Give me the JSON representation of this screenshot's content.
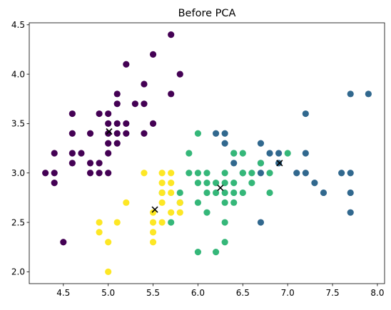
{
  "chart_data": {
    "type": "scatter",
    "title": "Before PCA",
    "xlabel": "",
    "ylabel": "",
    "xlim": [
      4.12,
      8.08
    ],
    "ylim": [
      1.88,
      4.52
    ],
    "xticks": [
      "4.5",
      "5.0",
      "5.5",
      "6.0",
      "6.5",
      "7.0",
      "7.5",
      "8.0"
    ],
    "xtick_values": [
      4.5,
      5.0,
      5.5,
      6.0,
      6.5,
      7.0,
      7.5,
      8.0
    ],
    "yticks": [
      "2.0",
      "2.5",
      "3.0",
      "3.5",
      "4.0",
      "4.5"
    ],
    "ytick_values": [
      2.0,
      2.5,
      3.0,
      3.5,
      4.0,
      4.5
    ],
    "grid": false,
    "legend": "none",
    "series": [
      {
        "color": "#440154",
        "marker": "circle",
        "points": [
          [
            4.3,
            3.0
          ],
          [
            4.4,
            2.9
          ],
          [
            4.4,
            3.0
          ],
          [
            4.4,
            3.2
          ],
          [
            4.5,
            2.3
          ],
          [
            4.6,
            3.1
          ],
          [
            4.6,
            3.2
          ],
          [
            4.6,
            3.4
          ],
          [
            4.6,
            3.6
          ],
          [
            4.7,
            3.2
          ],
          [
            4.8,
            3.0
          ],
          [
            4.8,
            3.1
          ],
          [
            4.8,
            3.4
          ],
          [
            4.9,
            3.0
          ],
          [
            4.9,
            3.1
          ],
          [
            4.9,
            3.6
          ],
          [
            5.0,
            3.0
          ],
          [
            5.0,
            3.2
          ],
          [
            5.0,
            3.3
          ],
          [
            5.0,
            3.4
          ],
          [
            5.0,
            3.5
          ],
          [
            5.0,
            3.6
          ],
          [
            5.1,
            3.3
          ],
          [
            5.1,
            3.4
          ],
          [
            5.1,
            3.5
          ],
          [
            5.1,
            3.7
          ],
          [
            5.1,
            3.8
          ],
          [
            5.2,
            3.4
          ],
          [
            5.2,
            3.5
          ],
          [
            5.2,
            4.1
          ],
          [
            5.3,
            3.7
          ],
          [
            5.4,
            3.4
          ],
          [
            5.4,
            3.7
          ],
          [
            5.4,
            3.9
          ],
          [
            5.5,
            3.5
          ],
          [
            5.5,
            4.2
          ],
          [
            5.7,
            3.8
          ],
          [
            5.7,
            4.4
          ],
          [
            5.8,
            4.0
          ]
        ]
      },
      {
        "color": "#31688e",
        "marker": "circle",
        "points": [
          [
            6.2,
            3.4
          ],
          [
            6.3,
            3.3
          ],
          [
            6.3,
            3.4
          ],
          [
            6.4,
            3.1
          ],
          [
            6.4,
            3.2
          ],
          [
            6.5,
            3.0
          ],
          [
            6.7,
            2.5
          ],
          [
            6.7,
            3.0
          ],
          [
            6.7,
            3.1
          ],
          [
            6.7,
            3.3
          ],
          [
            6.8,
            3.2
          ],
          [
            6.9,
            3.1
          ],
          [
            6.9,
            3.2
          ],
          [
            7.1,
            3.0
          ],
          [
            7.2,
            3.0
          ],
          [
            7.2,
            3.2
          ],
          [
            7.2,
            3.6
          ],
          [
            7.3,
            2.9
          ],
          [
            7.4,
            2.8
          ],
          [
            7.6,
            3.0
          ],
          [
            7.7,
            2.6
          ],
          [
            7.7,
            2.8
          ],
          [
            7.7,
            3.0
          ],
          [
            7.7,
            3.8
          ],
          [
            7.9,
            3.8
          ]
        ]
      },
      {
        "color": "#35b779",
        "marker": "circle",
        "points": [
          [
            5.6,
            2.8
          ],
          [
            5.7,
            2.5
          ],
          [
            5.8,
            2.7
          ],
          [
            5.8,
            2.8
          ],
          [
            5.9,
            3.0
          ],
          [
            5.9,
            3.2
          ],
          [
            6.0,
            2.2
          ],
          [
            6.0,
            2.7
          ],
          [
            6.0,
            2.9
          ],
          [
            6.0,
            3.0
          ],
          [
            6.0,
            3.4
          ],
          [
            6.1,
            2.6
          ],
          [
            6.1,
            2.8
          ],
          [
            6.1,
            2.9
          ],
          [
            6.1,
            3.0
          ],
          [
            6.2,
            2.2
          ],
          [
            6.2,
            2.8
          ],
          [
            6.2,
            2.9
          ],
          [
            6.3,
            2.3
          ],
          [
            6.3,
            2.5
          ],
          [
            6.3,
            2.7
          ],
          [
            6.3,
            2.8
          ],
          [
            6.3,
            2.9
          ],
          [
            6.3,
            3.0
          ],
          [
            6.4,
            2.7
          ],
          [
            6.4,
            2.8
          ],
          [
            6.4,
            2.9
          ],
          [
            6.4,
            3.2
          ],
          [
            6.5,
            2.8
          ],
          [
            6.5,
            3.0
          ],
          [
            6.5,
            3.2
          ],
          [
            6.6,
            2.9
          ],
          [
            6.6,
            3.0
          ],
          [
            6.7,
            3.1
          ],
          [
            6.8,
            2.8
          ],
          [
            6.8,
            3.0
          ],
          [
            7.0,
            3.2
          ]
        ]
      },
      {
        "color": "#fde725",
        "marker": "circle",
        "points": [
          [
            4.9,
            2.4
          ],
          [
            4.9,
            2.5
          ],
          [
            5.0,
            2.0
          ],
          [
            5.0,
            2.3
          ],
          [
            5.1,
            2.5
          ],
          [
            5.2,
            2.7
          ],
          [
            5.4,
            3.0
          ],
          [
            5.5,
            2.3
          ],
          [
            5.5,
            2.4
          ],
          [
            5.5,
            2.5
          ],
          [
            5.5,
            2.6
          ],
          [
            5.6,
            2.5
          ],
          [
            5.6,
            2.7
          ],
          [
            5.6,
            2.8
          ],
          [
            5.6,
            2.9
          ],
          [
            5.6,
            3.0
          ],
          [
            5.7,
            2.6
          ],
          [
            5.7,
            2.8
          ],
          [
            5.7,
            2.9
          ],
          [
            5.7,
            3.0
          ],
          [
            5.8,
            2.6
          ],
          [
            5.8,
            2.7
          ]
        ]
      },
      {
        "color": "#000000",
        "marker": "x",
        "points": [
          [
            5.01,
            3.42
          ],
          [
            5.52,
            2.63
          ],
          [
            6.25,
            2.85
          ],
          [
            6.91,
            3.1
          ]
        ]
      }
    ]
  }
}
